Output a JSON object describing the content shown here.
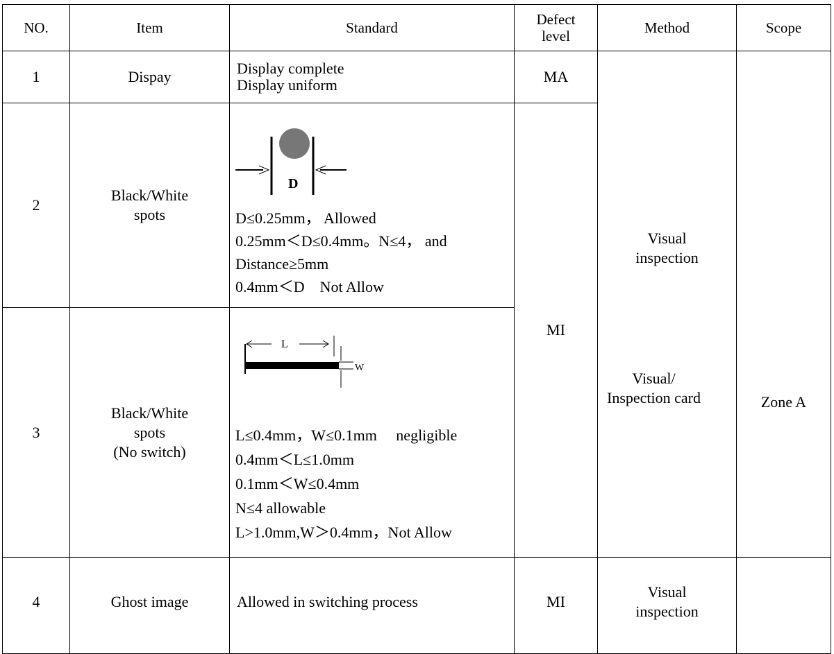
{
  "table": {
    "header": [
      "NO.",
      "Item",
      "Standard",
      "Defect level",
      "Method",
      "Scope"
    ],
    "rows": [
      {
        "no": "1",
        "item": [
          "Dispay"
        ],
        "standard": [
          "Display complete",
          "Display uniform"
        ],
        "defect_level": "MA"
      },
      {
        "no": "2",
        "item": [
          "Black/White",
          "spots"
        ],
        "figure_labels": [
          "D"
        ],
        "standard": [
          "D≤0.25mm， Allowed",
          "0.25mm＜D≤0.4mm。N≤4， and",
          "Distance≥5mm",
          "0.4mm＜D　Not Allow"
        ],
        "defect_level": "MI"
      },
      {
        "no": "3",
        "item": [
          "Black/White",
          "spots",
          "(No switch)"
        ],
        "figure_labels": [
          "L",
          "W"
        ],
        "standard": [
          "L≤0.4mm，W≤0.1mm　 negligible",
          "0.4mm＜L≤1.0mm",
          "0.1mm＜W≤0.4mm",
          "N≤4 allowable",
          "L>1.0mm,W＞0.4mm，Not Allow"
        ]
      },
      {
        "no": "4",
        "item": [
          "Ghost image"
        ],
        "standard": [
          "Allowed in switching process"
        ],
        "defect_level": "MI",
        "method": [
          "Visual",
          "inspection"
        ]
      }
    ],
    "method_merged": [
      [
        "Visual",
        "inspection"
      ],
      [
        "Visual/",
        "Inspection card"
      ]
    ],
    "scope_merged": "Zone A"
  }
}
